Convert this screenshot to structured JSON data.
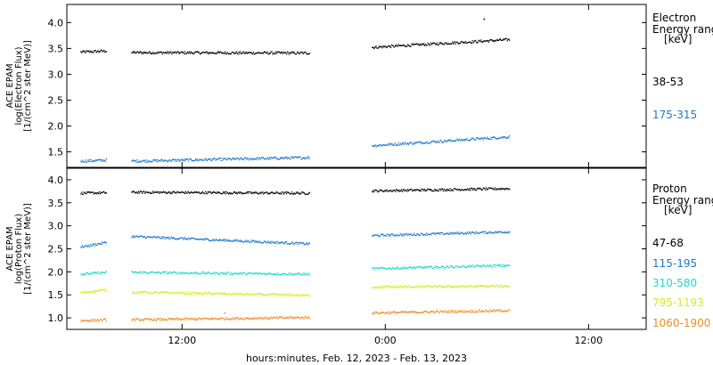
{
  "chart_data": [
    {
      "type": "scatter",
      "panel": "electron",
      "ylabel_lines": [
        "ACE EPAM",
        "log(Electron Flux)",
        "[1/(cm^2 ster MeV)]"
      ],
      "ylim": [
        1.2,
        4.35
      ],
      "yticks": [
        1.5,
        2.0,
        2.5,
        3.0,
        3.5,
        4.0
      ],
      "ytick_labels": [
        "1.5",
        "2.0",
        "2.5",
        "3.0",
        "3.5",
        "4.0"
      ],
      "legend_title_lines": [
        "Electron",
        "Energy ranges",
        "[keV]"
      ],
      "series": [
        {
          "name": "38-53",
          "color": "#000000",
          "segments": [
            {
              "x": [
                6.0,
                7.5
              ],
              "y": [
                3.44,
                3.46
              ]
            },
            {
              "x": [
                9.0,
                19.5
              ],
              "y": [
                3.43,
                3.42
              ]
            },
            {
              "x": [
                23.2,
                31.3
              ],
              "y": [
                3.53,
                3.68
              ]
            }
          ],
          "outliers": [
            {
              "x": 29.8,
              "y": 4.08
            }
          ]
        },
        {
          "name": "175-315",
          "color": "#1f78c8",
          "segments": [
            {
              "x": [
                6.0,
                7.5
              ],
              "y": [
                1.33,
                1.35
              ]
            },
            {
              "x": [
                9.0,
                19.5
              ],
              "y": [
                1.33,
                1.4
              ]
            },
            {
              "x": [
                23.2,
                31.3
              ],
              "y": [
                1.63,
                1.8
              ]
            }
          ],
          "outliers": []
        }
      ]
    },
    {
      "type": "scatter",
      "panel": "proton",
      "ylabel_lines": [
        "ACE EPAM",
        "log(Proton Flux)",
        "[1/(cm^2 ster MeV)]"
      ],
      "ylim": [
        0.75,
        4.25
      ],
      "yticks": [
        1.0,
        1.5,
        2.0,
        2.5,
        3.0,
        3.5,
        4.0
      ],
      "ytick_labels": [
        "1.0",
        "1.5",
        "2.0",
        "2.5",
        "3.0",
        "3.5",
        "4.0"
      ],
      "legend_title_lines": [
        "Proton",
        "Energy ranges",
        "[keV]"
      ],
      "series": [
        {
          "name": "47-68",
          "color": "#000000",
          "segments": [
            {
              "x": [
                6.0,
                7.5
              ],
              "y": [
                3.72,
                3.73
              ]
            },
            {
              "x": [
                9.0,
                19.5
              ],
              "y": [
                3.74,
                3.72
              ]
            },
            {
              "x": [
                23.2,
                31.3
              ],
              "y": [
                3.77,
                3.82
              ]
            }
          ],
          "outliers": []
        },
        {
          "name": "115-195",
          "color": "#1f78c8",
          "segments": [
            {
              "x": [
                6.0,
                7.5
              ],
              "y": [
                2.55,
                2.65
              ]
            },
            {
              "x": [
                9.0,
                19.5
              ],
              "y": [
                2.78,
                2.62
              ]
            },
            {
              "x": [
                23.2,
                31.3
              ],
              "y": [
                2.8,
                2.88
              ]
            }
          ],
          "outliers": []
        },
        {
          "name": "310-580",
          "color": "#20d8cc",
          "segments": [
            {
              "x": [
                6.0,
                7.5
              ],
              "y": [
                1.96,
                2.0
              ]
            },
            {
              "x": [
                9.0,
                19.5
              ],
              "y": [
                2.0,
                1.96
              ]
            },
            {
              "x": [
                23.2,
                31.3
              ],
              "y": [
                2.08,
                2.15
              ]
            }
          ],
          "outliers": []
        },
        {
          "name": "795-1193",
          "color": "#d8e820",
          "segments": [
            {
              "x": [
                6.0,
                7.5
              ],
              "y": [
                1.56,
                1.62
              ]
            },
            {
              "x": [
                9.0,
                19.5
              ],
              "y": [
                1.57,
                1.5
              ]
            },
            {
              "x": [
                23.2,
                31.3
              ],
              "y": [
                1.68,
                1.7
              ]
            }
          ],
          "outliers": []
        },
        {
          "name": "1060-1900",
          "color": "#f08c1e",
          "segments": [
            {
              "x": [
                6.0,
                7.5
              ],
              "y": [
                0.95,
                0.97
              ]
            },
            {
              "x": [
                9.0,
                19.5
              ],
              "y": [
                0.97,
                1.02
              ]
            },
            {
              "x": [
                23.2,
                31.3
              ],
              "y": [
                1.12,
                1.17
              ]
            }
          ],
          "outliers": [
            {
              "x": 14.5,
              "y": 1.12
            }
          ]
        }
      ]
    }
  ],
  "x_axis": {
    "range_hours": [
      5.2,
      39.4
    ],
    "ticks": [
      12,
      24,
      36
    ],
    "tick_labels": [
      "12:00",
      "0:00",
      "12:00"
    ],
    "label": "hours:minutes, Feb. 12, 2023 - Feb. 13, 2023"
  }
}
